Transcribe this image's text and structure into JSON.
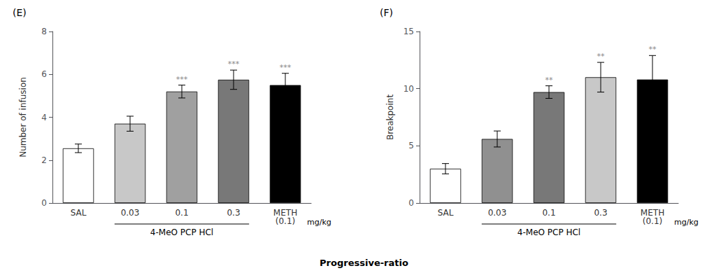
{
  "chart_data": [
    {
      "type": "bar",
      "title": "(E)",
      "categories": [
        "SAL",
        "0.03",
        "0.1",
        "0.3",
        "METH\n(0.1)"
      ],
      "values": [
        2.55,
        3.7,
        5.2,
        5.75,
        5.5
      ],
      "errors": [
        0.2,
        0.35,
        0.3,
        0.45,
        0.55
      ],
      "colors": [
        "#ffffff",
        "#c8c8c8",
        "#a0a0a0",
        "#787878",
        "#000000"
      ],
      "significance": [
        null,
        null,
        "***",
        "***",
        "***"
      ],
      "ylabel": "Number of infusion",
      "ylim": [
        0,
        8
      ],
      "yticks": [
        0,
        2,
        4,
        6,
        8
      ],
      "grid": false,
      "bracket": {
        "label": "4-MeO PCP HCl",
        "categories": [
          "0.03",
          "0.1",
          "0.3"
        ]
      },
      "unit_label": "mg/kg"
    },
    {
      "type": "bar",
      "title": "(F)",
      "categories": [
        "SAL",
        "0.03",
        "0.1",
        "0.3",
        "METH\n(0.1)"
      ],
      "values": [
        3.0,
        5.6,
        9.7,
        11.0,
        10.8
      ],
      "errors": [
        0.45,
        0.7,
        0.55,
        1.3,
        2.1
      ],
      "colors": [
        "#ffffff",
        "#909090",
        "#787878",
        "#c8c8c8",
        "#000000"
      ],
      "significance": [
        null,
        null,
        "**",
        "**",
        "**"
      ],
      "ylabel": "Breakpoint",
      "ylim": [
        0,
        15
      ],
      "yticks": [
        0,
        5,
        10,
        15
      ],
      "grid": false,
      "bracket": {
        "label": "4-MeO PCP HCl",
        "categories": [
          "0.03",
          "0.1",
          "0.3"
        ]
      },
      "unit_label": "mg/kg"
    }
  ],
  "xlabel": "Progressive-ratio"
}
